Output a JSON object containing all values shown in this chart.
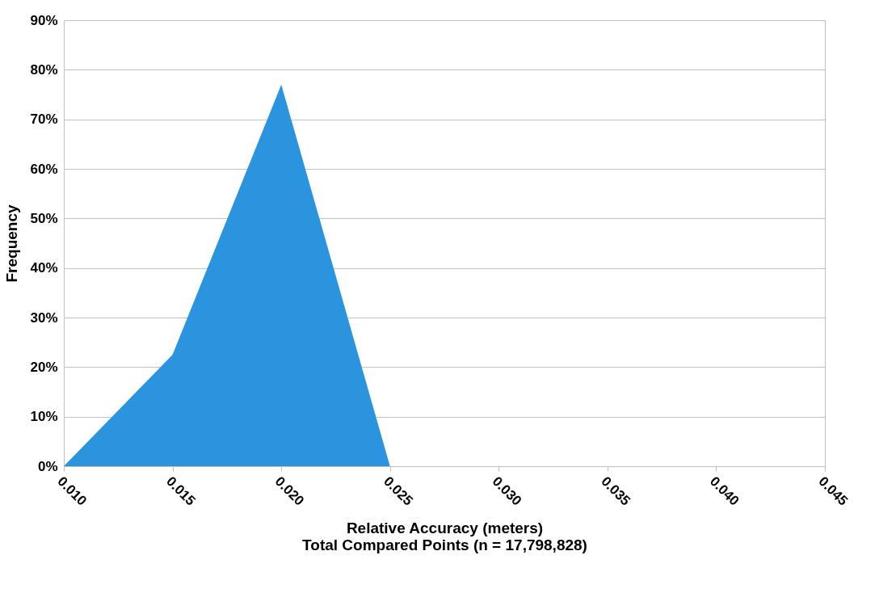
{
  "chart_data": {
    "type": "area",
    "xlabel": "Relative Accuracy (meters)",
    "ylabel": "Frequency",
    "annotations": [
      "Total Compared Points (n = 17,798,828)"
    ],
    "x": [
      0.01,
      0.015,
      0.02,
      0.025
    ],
    "series": [
      {
        "color": "#2a95de",
        "values": [
          0,
          22.5,
          77,
          0
        ]
      }
    ],
    "xlim": [
      0.01,
      0.045
    ],
    "xticks": [
      {
        "value": 0.01,
        "label": "0.010"
      },
      {
        "value": 0.015,
        "label": "0.015"
      },
      {
        "value": 0.02,
        "label": "0.020"
      },
      {
        "value": 0.025,
        "label": "0.025"
      },
      {
        "value": 0.03,
        "label": "0.030"
      },
      {
        "value": 0.035,
        "label": "0.035"
      },
      {
        "value": 0.04,
        "label": "0.040"
      },
      {
        "value": 0.045,
        "label": "0.045"
      }
    ],
    "ylim": [
      0,
      90
    ],
    "yticks": [
      {
        "value": 0,
        "label": "0%"
      },
      {
        "value": 10,
        "label": "10%"
      },
      {
        "value": 20,
        "label": "20%"
      },
      {
        "value": 30,
        "label": "30%"
      },
      {
        "value": 40,
        "label": "40%"
      },
      {
        "value": 50,
        "label": "50%"
      },
      {
        "value": 60,
        "label": "60%"
      },
      {
        "value": 70,
        "label": "70%"
      },
      {
        "value": 80,
        "label": "80%"
      },
      {
        "value": 90,
        "label": "90%"
      }
    ],
    "grid": "y",
    "legend": false
  }
}
